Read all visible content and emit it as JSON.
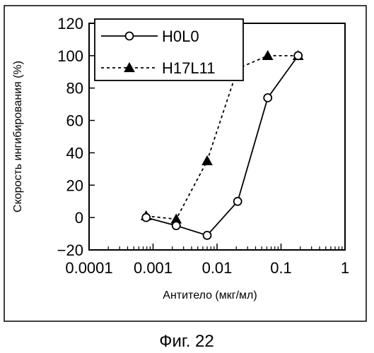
{
  "figure_caption": "Фиг. 22",
  "chart_data": {
    "type": "line",
    "title": "",
    "xlabel": "Антитело (мкг/мл)",
    "ylabel": "Скорость ингибирования (%)",
    "x_scale": "log",
    "xlim": [
      0.0001,
      1
    ],
    "ylim": [
      -20,
      120
    ],
    "x_ticks": [
      0.0001,
      0.001,
      0.01,
      0.1,
      1
    ],
    "x_tick_labels": [
      "0.0001",
      "0.001",
      "0.01",
      "0.1",
      "1"
    ],
    "y_ticks": [
      -20,
      0,
      20,
      40,
      60,
      80,
      100,
      120
    ],
    "y_tick_labels": [
      "−20",
      "0",
      "20",
      "40",
      "60",
      "80",
      "100",
      "120"
    ],
    "grid": false,
    "legend_position": "top-left",
    "series": [
      {
        "name": "H0L0",
        "marker": "open-circle",
        "line_style": "solid",
        "color": "#000000",
        "x": [
          0.00078,
          0.0023,
          0.007,
          0.021,
          0.062,
          0.185
        ],
        "y": [
          0,
          -5,
          -11,
          10,
          74,
          100
        ]
      },
      {
        "name": "H17L11",
        "marker": "filled-triangle",
        "line_style": "dashed",
        "color": "#000000",
        "x": [
          0.00078,
          0.0023,
          0.007,
          0.021,
          0.062,
          0.185
        ],
        "y": [
          1,
          -1,
          35,
          92,
          100,
          100
        ]
      }
    ]
  }
}
